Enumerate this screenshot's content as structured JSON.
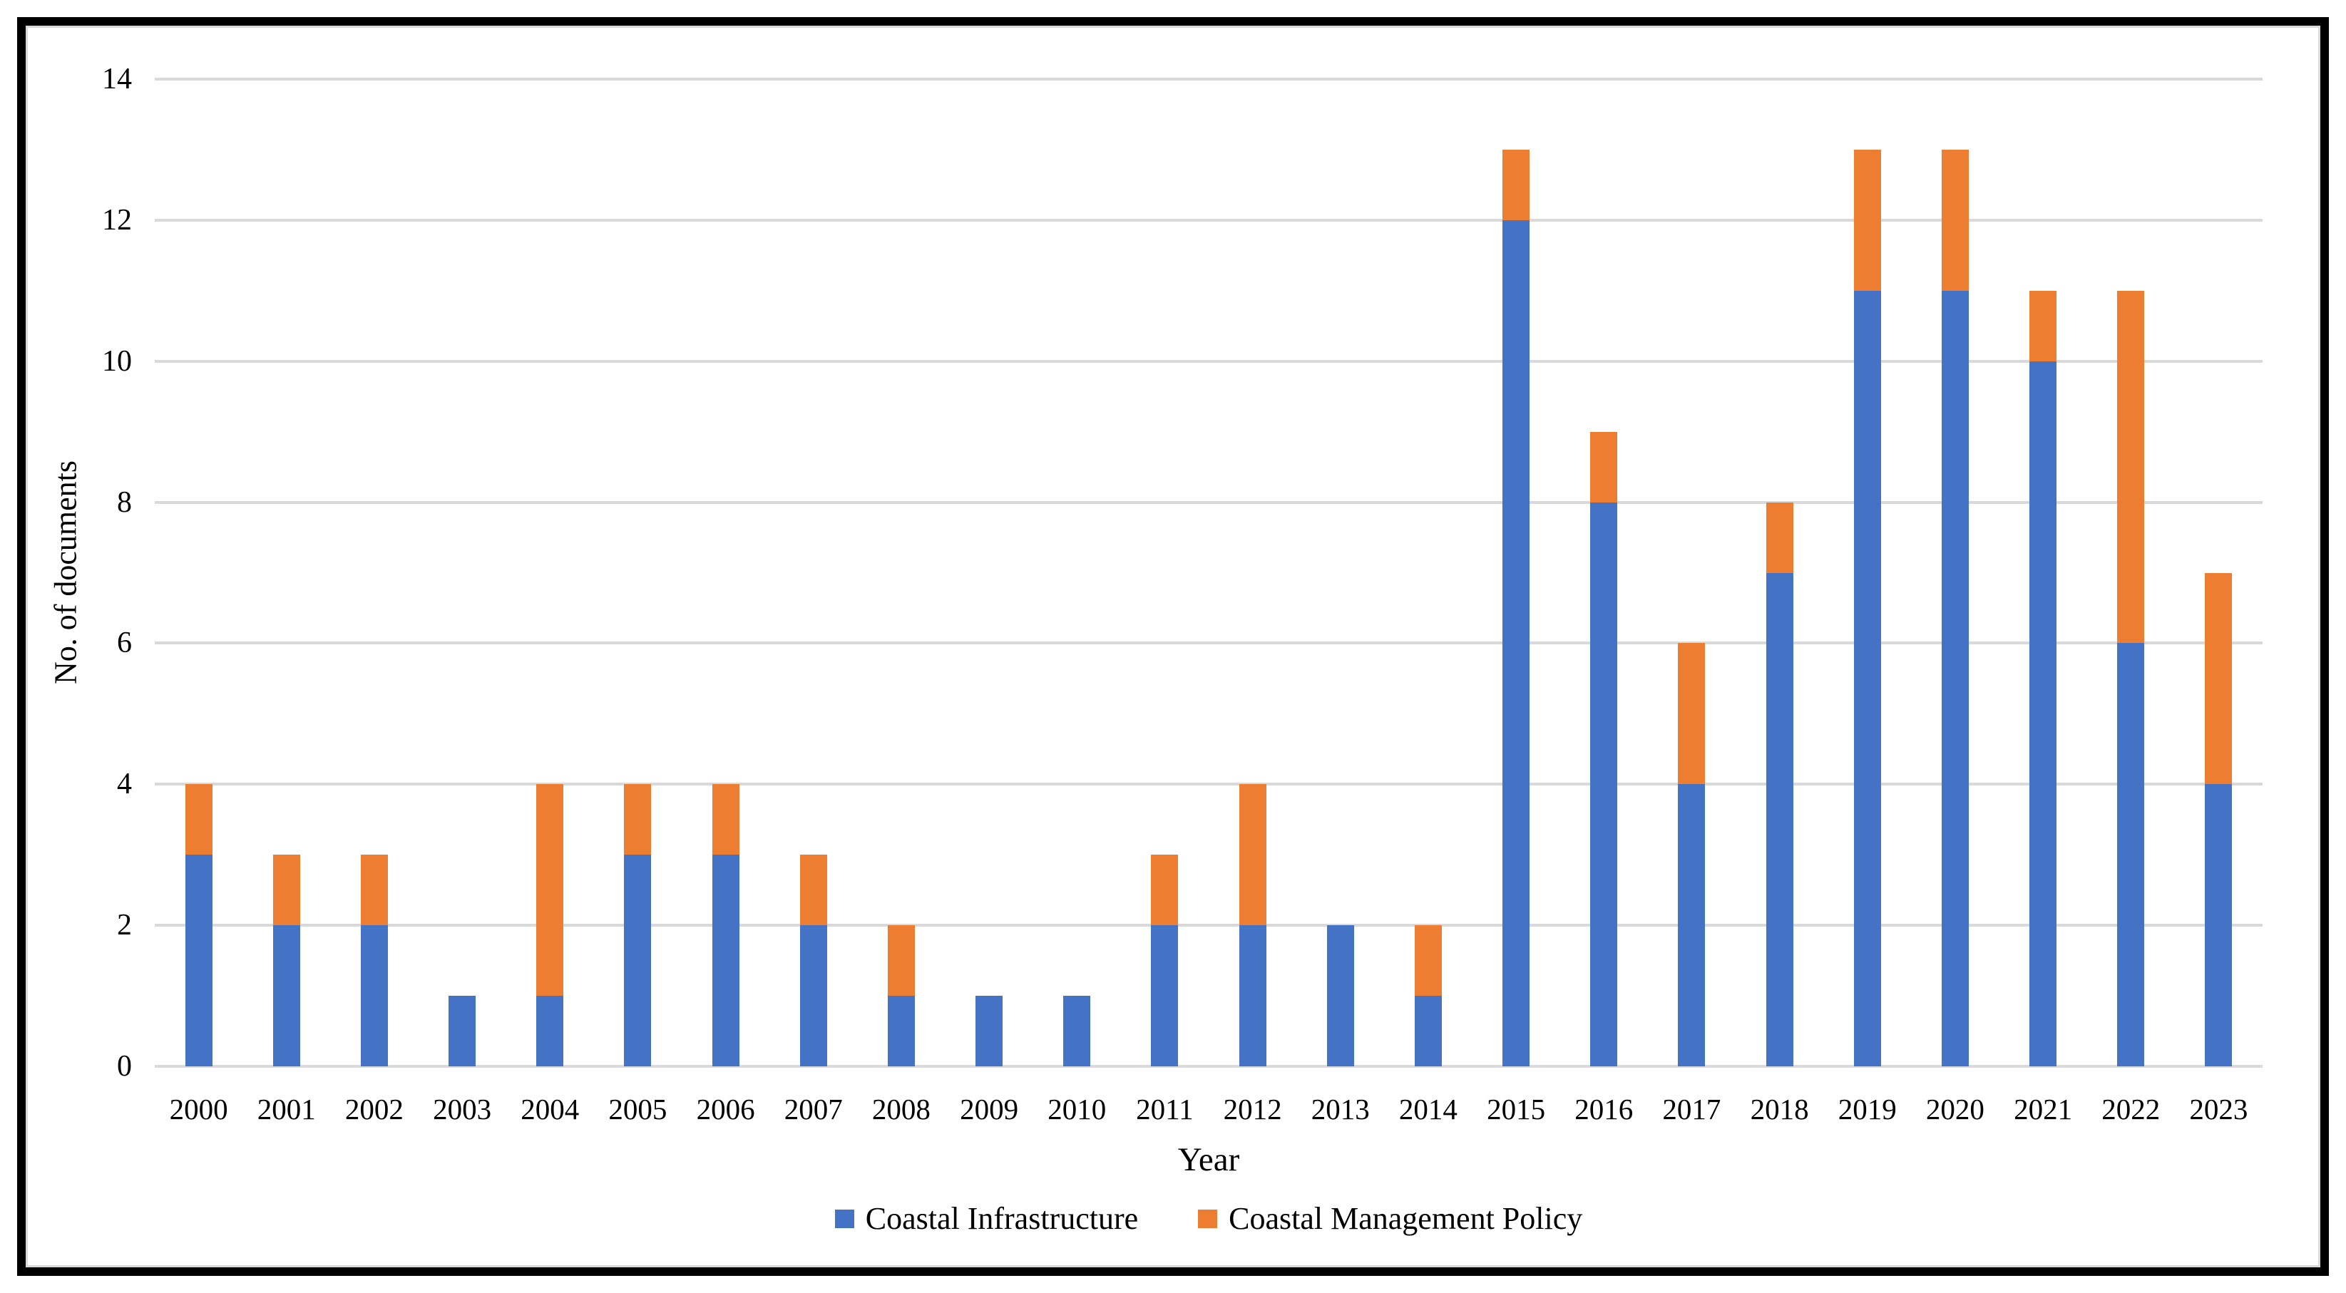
{
  "figure": {
    "background_color": "#ffffff",
    "outer_border_color": "#000000",
    "inner_frame_color": "#d9d9d9"
  },
  "chart_data": {
    "type": "bar",
    "stacked": true,
    "title": "",
    "xlabel": "Year",
    "ylabel": "No. of documents",
    "ylim": [
      0,
      14
    ],
    "ytick_step": 2,
    "ytick_labels": [
      "0",
      "2",
      "4",
      "6",
      "8",
      "10",
      "12",
      "14"
    ],
    "grid": true,
    "gridline_color": "#d9d9d9",
    "legend_position": "bottom",
    "categories": [
      "2000",
      "2001",
      "2002",
      "2003",
      "2004",
      "2005",
      "2006",
      "2007",
      "2008",
      "2009",
      "2010",
      "2011",
      "2012",
      "2013",
      "2014",
      "2015",
      "2016",
      "2017",
      "2018",
      "2019",
      "2020",
      "2021",
      "2022",
      "2023"
    ],
    "series": [
      {
        "name": "Coastal Infrastructure",
        "color": "#4472c4",
        "values": [
          3,
          2,
          2,
          1,
          1,
          3,
          3,
          2,
          1,
          1,
          1,
          2,
          2,
          2,
          1,
          12,
          8,
          4,
          7,
          11,
          11,
          10,
          6,
          4
        ]
      },
      {
        "name": "Coastal Management Policy",
        "color": "#ed7d31",
        "values": [
          1,
          1,
          1,
          0,
          3,
          1,
          1,
          1,
          1,
          0,
          0,
          1,
          2,
          0,
          1,
          1,
          1,
          2,
          1,
          2,
          2,
          1,
          5,
          3
        ]
      }
    ],
    "totals": [
      4,
      3,
      3,
      1,
      4,
      4,
      4,
      3,
      2,
      1,
      1,
      3,
      4,
      2,
      2,
      13,
      9,
      6,
      8,
      13,
      13,
      11,
      11,
      7
    ]
  }
}
